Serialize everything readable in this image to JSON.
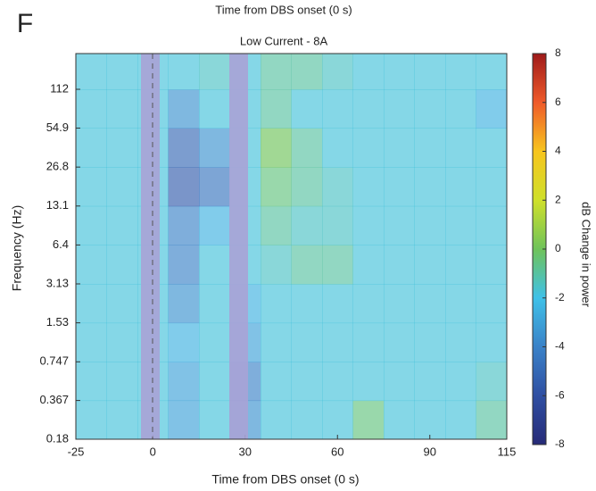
{
  "chart_data": {
    "type": "heatmap",
    "panel_label": "F",
    "title": "Time from DBS onset (0 s)",
    "subtitle": "Low Current - 8A",
    "x_label": "Time from DBS onset (0 s)",
    "y_label": "Frequency (Hz)",
    "colorbar_label": "dB Change in power",
    "xlim": [
      -25,
      115
    ],
    "xticks": [
      -25,
      0,
      30,
      60,
      90,
      115
    ],
    "ylim": [
      0.18,
      216
    ],
    "yticks": [
      0.18,
      0.367,
      0.747,
      1.53,
      3.13,
      6.4,
      13.1,
      26.8,
      54.9,
      112
    ],
    "log_y": true,
    "x_bins": [
      -25,
      -15,
      -5,
      5,
      15,
      25,
      35,
      45,
      55,
      65,
      75,
      85,
      95,
      105,
      115
    ],
    "y_bins": [
      0.18,
      0.367,
      0.747,
      1.53,
      3.13,
      6.4,
      13.1,
      26.8,
      54.9,
      112,
      216
    ],
    "values": [
      [
        -1.8,
        -1.8,
        -1.8,
        -3,
        -1.8,
        -3.5,
        -1.8,
        -1.8,
        -1.8,
        -0.5,
        -1.8,
        -1.8,
        -1.8,
        -1
      ],
      [
        -1.8,
        -1.8,
        -1.8,
        -3,
        -1.8,
        -4,
        -1.8,
        -1.8,
        -1.8,
        -1.8,
        -1.8,
        -1.8,
        -1.8,
        -1.5
      ],
      [
        -1.8,
        -1.8,
        -1.8,
        -2.5,
        -1.8,
        -3,
        -1.8,
        -1.8,
        -1.8,
        -1.8,
        -1.8,
        -1.8,
        -1.8,
        -1.8
      ],
      [
        -1.8,
        -1.8,
        -1.8,
        -3.5,
        -1.8,
        -2.5,
        -1.8,
        -1.8,
        -1.8,
        -1.8,
        -1.8,
        -1.8,
        -1.8,
        -1.8
      ],
      [
        -1.8,
        -1.8,
        -1.8,
        -4,
        -1.8,
        -1.8,
        -1.5,
        -1,
        -1,
        -1.8,
        -1.8,
        -1.8,
        -1.8,
        -1.8
      ],
      [
        -1.8,
        -1.8,
        -1.8,
        -4,
        -2.5,
        -1.8,
        -1,
        -1.5,
        -1.5,
        -1.8,
        -1.8,
        -1.8,
        -1.8,
        -1.8
      ],
      [
        -1.8,
        -1.8,
        -1.8,
        -5.5,
        -4.5,
        -1.8,
        -0.5,
        -1,
        -1.5,
        -1.8,
        -1.8,
        -1.8,
        -1.8,
        -1.8
      ],
      [
        -1.8,
        -1.8,
        -1.8,
        -5,
        -3.5,
        -1.8,
        0,
        -1,
        -1.8,
        -1.8,
        -1.8,
        -1.8,
        -1.8,
        -1.8
      ],
      [
        -1.8,
        -1.8,
        -1.8,
        -3.5,
        -1.8,
        -1.8,
        -1,
        -1.8,
        -1.8,
        -1.8,
        -1.8,
        -1.8,
        -1.8,
        -2.5
      ],
      [
        -1.8,
        -1.8,
        -1.8,
        -1.8,
        -1.5,
        -1.8,
        -1,
        -1,
        -1.5,
        -1.8,
        -1.8,
        -1.8,
        -1.8,
        -1.8
      ]
    ],
    "clim": [
      -8,
      8
    ],
    "cticks": [
      -8,
      -6,
      -4,
      -2,
      0,
      2,
      4,
      6,
      8
    ],
    "colormap": [
      "#262a77",
      "#2f4fa2",
      "#3a82c8",
      "#3fc1e8",
      "#6fc35a",
      "#cfe02a",
      "#f7c51e",
      "#ef5a2a",
      "#9e1a1a"
    ]
  }
}
